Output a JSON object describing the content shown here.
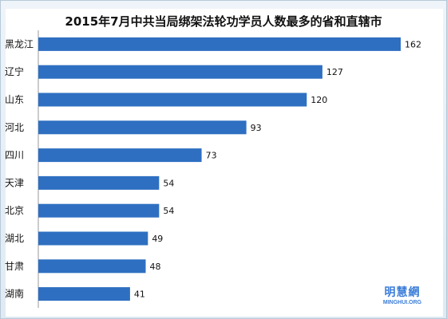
{
  "chart_data": {
    "type": "bar",
    "orientation": "horizontal",
    "title": "2015年7月中共当局绑架法轮功学员人数最多的省和直辖市",
    "categories": [
      "黑龙江",
      "辽宁",
      "山东",
      "河北",
      "四川",
      "天津",
      "北京",
      "湖北",
      "甘肃",
      "湖南"
    ],
    "values": [
      162,
      127,
      120,
      93,
      73,
      54,
      54,
      49,
      48,
      41
    ],
    "xlim": [
      0,
      170
    ],
    "grid": false,
    "bar_color": "#2e6fc1"
  },
  "watermark": {
    "cn": "明慧網",
    "en": "MINGHUI.ORG"
  }
}
